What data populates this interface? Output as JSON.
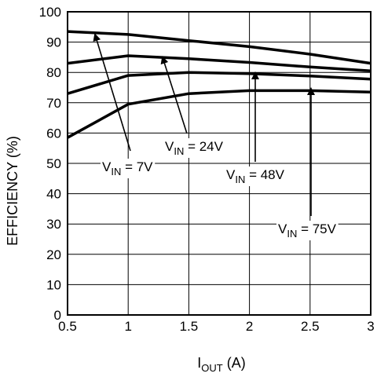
{
  "chart_data": {
    "type": "line",
    "title": "",
    "xlabel": {
      "main": "I",
      "sub": "OUT",
      "unit": " (A)"
    },
    "ylabel": "EFFICIENCY (%)",
    "xlim": [
      0.5,
      3
    ],
    "ylim": [
      0,
      100
    ],
    "x_ticks": [
      0.5,
      1,
      1.5,
      2,
      2.5,
      3
    ],
    "x_tick_labels": [
      "0.5",
      "1",
      "1.5",
      "2",
      "2.5",
      "3"
    ],
    "y_ticks": [
      0,
      10,
      20,
      30,
      40,
      50,
      60,
      70,
      80,
      90,
      100
    ],
    "y_tick_labels": [
      "0",
      "10",
      "20",
      "30",
      "40",
      "50",
      "60",
      "70",
      "80",
      "90",
      "100"
    ],
    "grid": true,
    "line_color": "#000000",
    "series": [
      {
        "name": "VIN = 7V",
        "x": [
          0.5,
          1,
          1.5,
          2,
          2.5,
          3
        ],
        "y": [
          93.5,
          92.5,
          90.5,
          88.5,
          86,
          83
        ]
      },
      {
        "name": "VIN = 24V",
        "x": [
          0.5,
          1,
          1.5,
          2,
          2.5,
          3
        ],
        "y": [
          83,
          85.5,
          84.5,
          83.3,
          81.8,
          80.5
        ]
      },
      {
        "name": "VIN = 48V",
        "x": [
          0.5,
          1,
          1.5,
          2,
          2.5,
          3
        ],
        "y": [
          73,
          79,
          80,
          79.6,
          78.8,
          77.8
        ]
      },
      {
        "name": "VIN = 75V",
        "x": [
          0.5,
          1,
          1.5,
          2,
          2.5,
          3
        ],
        "y": [
          58.5,
          69.5,
          73,
          74,
          74,
          73.5
        ]
      }
    ],
    "annotations": [
      {
        "main": "V",
        "sub": "IN",
        "rest": " = 7V"
      },
      {
        "main": "V",
        "sub": "IN",
        "rest": " = 24V"
      },
      {
        "main": "V",
        "sub": "IN",
        "rest": " = 48V"
      },
      {
        "main": "V",
        "sub": "IN",
        "rest": " = 75V"
      }
    ]
  }
}
